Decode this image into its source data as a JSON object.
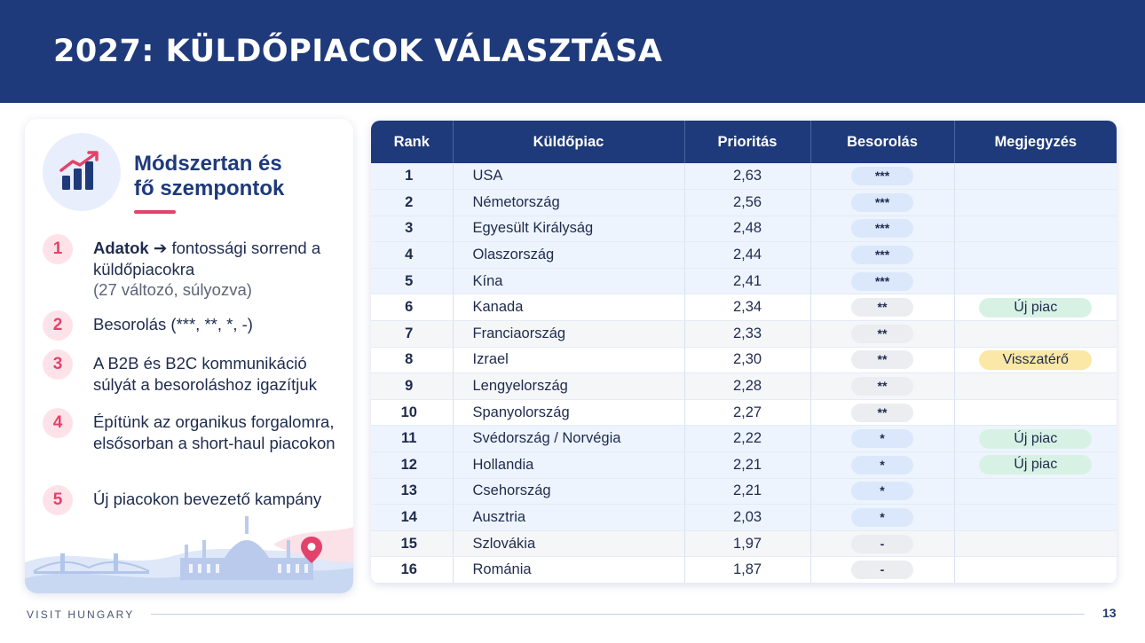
{
  "header": {
    "title": "2027: KÜLDŐPIACOK VÁLASZTÁSA"
  },
  "left_panel": {
    "title_line1": "Módszertan és",
    "title_line2": "fő szempontok",
    "steps": [
      {
        "num": "1",
        "bold": "Adatok ➔",
        "text": " fontossági sorrend a küldőpiacokra",
        "muted": "(27 változó, súlyozva)"
      },
      {
        "num": "2",
        "text": "Besorolás (***, **, *, -)"
      },
      {
        "num": "3",
        "text": "A B2B és B2C kommunikáció súlyát a besoroláshoz igazítjuk"
      },
      {
        "num": "4",
        "text": "Építünk az organikus forgalomra, elsősorban a short-haul piacokon"
      },
      {
        "num": "5",
        "text": "Új piacokon bevezető kampány"
      }
    ]
  },
  "table": {
    "headers": [
      "Rank",
      "Küldőpiac",
      "Prioritás",
      "Besorolás",
      "Megjegyzés"
    ],
    "rows": [
      {
        "rank": "1",
        "market": "USA",
        "priority": "2,63",
        "class": "***",
        "note": ""
      },
      {
        "rank": "2",
        "market": "Németország",
        "priority": "2,56",
        "class": "***",
        "note": ""
      },
      {
        "rank": "3",
        "market": "Egyesült Királyság",
        "priority": "2,48",
        "class": "***",
        "note": ""
      },
      {
        "rank": "4",
        "market": "Olaszország",
        "priority": "2,44",
        "class": "***",
        "note": ""
      },
      {
        "rank": "5",
        "market": "Kína",
        "priority": "2,41",
        "class": "***",
        "note": ""
      },
      {
        "rank": "6",
        "market": "Kanada",
        "priority": "2,34",
        "class": "**",
        "note": "Új piac"
      },
      {
        "rank": "7",
        "market": "Franciaország",
        "priority": "2,33",
        "class": "**",
        "note": ""
      },
      {
        "rank": "8",
        "market": "Izrael",
        "priority": "2,30",
        "class": "**",
        "note": "Visszatérő"
      },
      {
        "rank": "9",
        "market": "Lengyelország",
        "priority": "2,28",
        "class": "**",
        "note": ""
      },
      {
        "rank": "10",
        "market": "Spanyolország",
        "priority": "2,27",
        "class": "**",
        "note": ""
      },
      {
        "rank": "11",
        "market": "Svédország / Norvégia",
        "priority": "2,22",
        "class": "*",
        "note": "Új piac"
      },
      {
        "rank": "12",
        "market": "Hollandia",
        "priority": "2,21",
        "class": "*",
        "note": "Új piac"
      },
      {
        "rank": "13",
        "market": "Csehország",
        "priority": "2,21",
        "class": "*",
        "note": ""
      },
      {
        "rank": "14",
        "market": "Ausztria",
        "priority": "2,03",
        "class": "*",
        "note": ""
      },
      {
        "rank": "15",
        "market": "Szlovákia",
        "priority": "1,97",
        "class": "-",
        "note": ""
      },
      {
        "rank": "16",
        "market": "Románia",
        "priority": "1,87",
        "class": "-",
        "note": ""
      }
    ]
  },
  "footer": {
    "brand": "VISIT HUNGARY",
    "page": "13"
  },
  "colors": {
    "header_bg": "#1e3a7a",
    "accent_pink": "#e4426b",
    "new_market": "#d7f2e4",
    "returning": "#fbe8a6"
  },
  "icons": [
    "growth-chart-icon",
    "location-pin-icon",
    "budapest-skyline-illustration"
  ]
}
